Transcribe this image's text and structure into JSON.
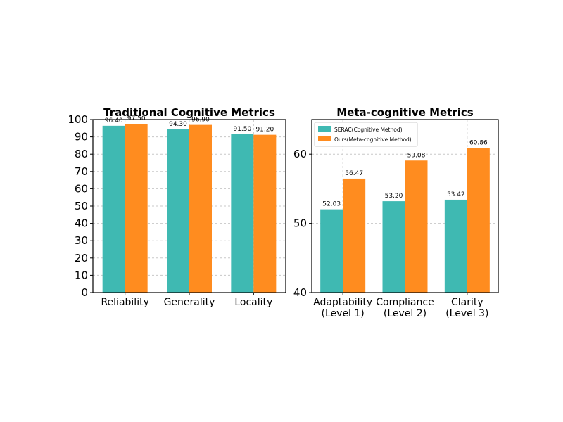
{
  "colors": {
    "serac": "#3fb9b2",
    "ours": "#ff8c1f",
    "grid": "#c8c8c8"
  },
  "chart_data": [
    {
      "type": "bar",
      "title": "Traditional Cognitive Metrics",
      "categories": [
        "Reliability",
        "Generality",
        "Locality"
      ],
      "series": [
        {
          "values": [
            96.4,
            94.3,
            91.5
          ],
          "labels": [
            "96.40",
            "94.30",
            "91.50"
          ]
        },
        {
          "values": [
            97.5,
            96.9,
            91.2
          ],
          "labels": [
            "97.50",
            "96.90",
            "91.20"
          ]
        }
      ],
      "ylim": [
        0,
        100
      ],
      "yticks": [
        "0",
        "10",
        "20",
        "30",
        "40",
        "50",
        "60",
        "70",
        "80",
        "90",
        "100"
      ],
      "grid": true,
      "legend": "none"
    },
    {
      "type": "bar",
      "title": "Meta-cognitive Metrics",
      "categories": [
        [
          "Adaptability",
          "(Level 1)"
        ],
        [
          "Compliance",
          "(Level 2)"
        ],
        [
          "Clarity",
          "(Level 3)"
        ]
      ],
      "series": [
        {
          "name": "SERAC(Cognitive Method)",
          "values": [
            52.03,
            53.2,
            53.42
          ],
          "labels": [
            "52.03",
            "53.20",
            "53.42"
          ]
        },
        {
          "name": "Ours(Meta-cognitive Method)",
          "values": [
            56.47,
            59.08,
            60.86
          ],
          "labels": [
            "56.47",
            "59.08",
            "60.86"
          ]
        }
      ],
      "ylim": [
        40,
        65
      ],
      "yticks": [
        "40",
        "50",
        "60"
      ],
      "grid": true,
      "legend": "top-left"
    }
  ]
}
